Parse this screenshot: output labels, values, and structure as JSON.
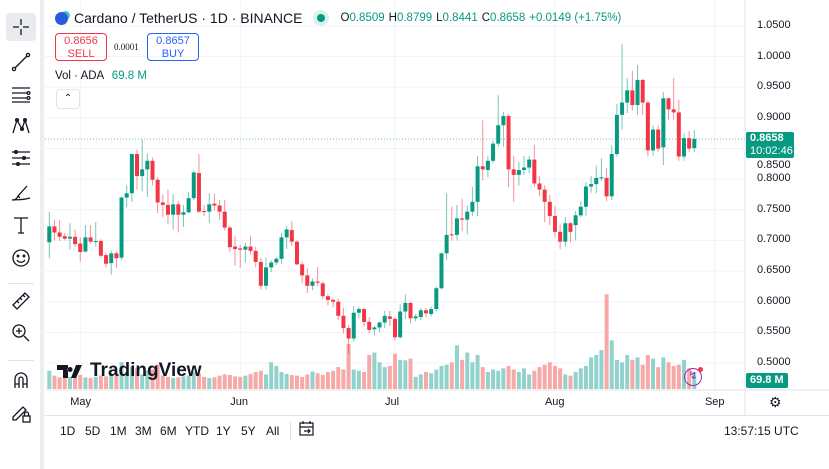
{
  "legend": {
    "title": "Cardano / TetherUS · 1D · BINANCE",
    "open_label": "O",
    "open": "0.8509",
    "high_label": "H",
    "high": "0.8799",
    "low_label": "L",
    "low": "0.8441",
    "close_label": "C",
    "close": "0.8658",
    "change": "+0.0149 (+1.75%)",
    "market_status": "open"
  },
  "trade": {
    "sell_price": "0.8656",
    "sell_label": "SELL",
    "spread": "0.0001",
    "buy_price": "0.8657",
    "buy_label": "BUY"
  },
  "volume": {
    "label": "Vol · ADA",
    "value": "69.8 M"
  },
  "price_tag": {
    "price": "0.8658",
    "countdown": "10:02:46"
  },
  "volume_tag": "69.8 M",
  "watermark": "TradingView",
  "ranges": [
    "1D",
    "5D",
    "1M",
    "3M",
    "6M",
    "YTD",
    "1Y",
    "5Y",
    "All"
  ],
  "clock": "13:57:15 UTC",
  "toolbar": [
    "crosshair-icon",
    "trend-line-icon",
    "fib-retracement-icon",
    "pattern-icon",
    "projection-icon",
    "brush-icon",
    "text-icon",
    "emoji-icon",
    "ruler-icon",
    "zoom-in-icon",
    "magnet-icon",
    "lock-drawing-icon"
  ],
  "colors": {
    "up": "#089981",
    "down": "#f23645",
    "up_volume": "#92d2cc",
    "down_volume": "#f7a9a7",
    "accent": "#2962ff"
  },
  "chart_data": {
    "type": "candlestick",
    "y_ticks": [
      "1.0500",
      "1.0000",
      "0.9500",
      "0.9000",
      "0.8500",
      "0.8000",
      "0.7500",
      "0.7000",
      "0.6500",
      "0.6000",
      "0.5500",
      "0.5000"
    ],
    "ylim": [
      0.5,
      1.05
    ],
    "x_ticks": [
      "May",
      "Jun",
      "Jul",
      "Aug",
      "Sep"
    ],
    "grid": true,
    "candles_ohlc": [
      [
        0.697,
        0.747,
        0.671,
        0.723
      ],
      [
        0.723,
        0.734,
        0.7,
        0.713
      ],
      [
        0.713,
        0.733,
        0.699,
        0.706
      ],
      [
        0.707,
        0.712,
        0.7,
        0.703
      ],
      [
        0.703,
        0.728,
        0.685,
        0.706
      ],
      [
        0.706,
        0.718,
        0.69,
        0.694
      ],
      [
        0.695,
        0.705,
        0.665,
        0.681
      ],
      [
        0.682,
        0.725,
        0.68,
        0.705
      ],
      [
        0.705,
        0.725,
        0.695,
        0.698
      ],
      [
        0.698,
        0.73,
        0.69,
        0.699
      ],
      [
        0.699,
        0.702,
        0.672,
        0.675
      ],
      [
        0.676,
        0.68,
        0.656,
        0.662
      ],
      [
        0.663,
        0.683,
        0.644,
        0.679
      ],
      [
        0.679,
        0.682,
        0.655,
        0.671
      ],
      [
        0.672,
        0.772,
        0.668,
        0.77
      ],
      [
        0.77,
        0.79,
        0.754,
        0.777
      ],
      [
        0.777,
        0.842,
        0.763,
        0.841
      ],
      [
        0.841,
        0.848,
        0.783,
        0.805
      ],
      [
        0.805,
        0.865,
        0.78,
        0.816
      ],
      [
        0.816,
        0.842,
        0.771,
        0.83
      ],
      [
        0.83,
        0.835,
        0.79,
        0.799
      ],
      [
        0.799,
        0.803,
        0.745,
        0.762
      ],
      [
        0.762,
        0.775,
        0.738,
        0.758
      ],
      [
        0.758,
        0.783,
        0.726,
        0.742
      ],
      [
        0.742,
        0.776,
        0.718,
        0.759
      ],
      [
        0.759,
        0.765,
        0.713,
        0.742
      ],
      [
        0.742,
        0.758,
        0.722,
        0.746
      ],
      [
        0.746,
        0.779,
        0.745,
        0.769
      ],
      [
        0.769,
        0.814,
        0.766,
        0.811
      ],
      [
        0.81,
        0.841,
        0.745,
        0.747
      ],
      [
        0.748,
        0.758,
        0.74,
        0.747
      ],
      [
        0.747,
        0.777,
        0.728,
        0.759
      ],
      [
        0.76,
        0.776,
        0.749,
        0.757
      ],
      [
        0.757,
        0.766,
        0.734,
        0.747
      ],
      [
        0.747,
        0.766,
        0.716,
        0.721
      ],
      [
        0.721,
        0.723,
        0.681,
        0.689
      ],
      [
        0.69,
        0.708,
        0.659,
        0.686
      ],
      [
        0.687,
        0.693,
        0.655,
        0.685
      ],
      [
        0.685,
        0.696,
        0.664,
        0.69
      ],
      [
        0.69,
        0.708,
        0.677,
        0.683
      ],
      [
        0.683,
        0.69,
        0.656,
        0.665
      ],
      [
        0.665,
        0.672,
        0.62,
        0.626
      ],
      [
        0.626,
        0.672,
        0.62,
        0.656
      ],
      [
        0.656,
        0.668,
        0.648,
        0.664
      ],
      [
        0.664,
        0.673,
        0.66,
        0.67
      ],
      [
        0.67,
        0.712,
        0.662,
        0.705
      ],
      [
        0.705,
        0.724,
        0.686,
        0.718
      ],
      [
        0.717,
        0.732,
        0.691,
        0.698
      ],
      [
        0.698,
        0.7,
        0.66,
        0.661
      ],
      [
        0.661,
        0.666,
        0.63,
        0.643
      ],
      [
        0.643,
        0.655,
        0.614,
        0.626
      ],
      [
        0.626,
        0.638,
        0.619,
        0.633
      ],
      [
        0.633,
        0.657,
        0.625,
        0.631
      ],
      [
        0.63,
        0.633,
        0.604,
        0.609
      ],
      [
        0.609,
        0.613,
        0.594,
        0.603
      ],
      [
        0.603,
        0.605,
        0.591,
        0.6
      ],
      [
        0.6,
        0.605,
        0.57,
        0.577
      ],
      [
        0.577,
        0.59,
        0.548,
        0.557
      ],
      [
        0.557,
        0.562,
        0.515,
        0.54
      ],
      [
        0.54,
        0.593,
        0.535,
        0.582
      ],
      [
        0.582,
        0.592,
        0.573,
        0.588
      ],
      [
        0.588,
        0.59,
        0.56,
        0.567
      ],
      [
        0.567,
        0.575,
        0.548,
        0.554
      ],
      [
        0.555,
        0.56,
        0.545,
        0.558
      ],
      [
        0.558,
        0.568,
        0.55,
        0.566
      ],
      [
        0.566,
        0.585,
        0.557,
        0.577
      ],
      [
        0.576,
        0.585,
        0.56,
        0.572
      ],
      [
        0.572,
        0.575,
        0.537,
        0.542
      ],
      [
        0.542,
        0.596,
        0.54,
        0.584
      ],
      [
        0.584,
        0.612,
        0.572,
        0.598
      ],
      [
        0.598,
        0.6,
        0.565,
        0.573
      ],
      [
        0.573,
        0.58,
        0.568,
        0.576
      ],
      [
        0.575,
        0.59,
        0.57,
        0.586
      ],
      [
        0.586,
        0.59,
        0.575,
        0.581
      ],
      [
        0.58,
        0.592,
        0.576,
        0.588
      ],
      [
        0.588,
        0.625,
        0.585,
        0.622
      ],
      [
        0.622,
        0.68,
        0.62,
        0.679
      ],
      [
        0.679,
        0.777,
        0.668,
        0.709
      ],
      [
        0.71,
        0.755,
        0.7,
        0.709
      ],
      [
        0.709,
        0.758,
        0.7,
        0.736
      ],
      [
        0.736,
        0.768,
        0.715,
        0.734
      ],
      [
        0.734,
        0.757,
        0.71,
        0.747
      ],
      [
        0.747,
        0.787,
        0.74,
        0.763
      ],
      [
        0.763,
        0.838,
        0.74,
        0.821
      ],
      [
        0.821,
        0.896,
        0.798,
        0.816
      ],
      [
        0.815,
        0.838,
        0.803,
        0.83
      ],
      [
        0.83,
        0.863,
        0.826,
        0.858
      ],
      [
        0.858,
        0.937,
        0.853,
        0.888
      ],
      [
        0.888,
        0.91,
        0.853,
        0.903
      ],
      [
        0.903,
        0.906,
        0.787,
        0.816
      ],
      [
        0.816,
        0.838,
        0.763,
        0.807
      ],
      [
        0.807,
        0.828,
        0.79,
        0.815
      ],
      [
        0.815,
        0.838,
        0.807,
        0.819
      ],
      [
        0.819,
        0.838,
        0.81,
        0.832
      ],
      [
        0.832,
        0.856,
        0.787,
        0.793
      ],
      [
        0.793,
        0.805,
        0.772,
        0.783
      ],
      [
        0.783,
        0.79,
        0.73,
        0.763
      ],
      [
        0.763,
        0.774,
        0.725,
        0.74
      ],
      [
        0.74,
        0.756,
        0.706,
        0.714
      ],
      [
        0.714,
        0.726,
        0.686,
        0.698
      ],
      [
        0.698,
        0.738,
        0.69,
        0.728
      ],
      [
        0.728,
        0.73,
        0.697,
        0.714
      ],
      [
        0.725,
        0.748,
        0.7,
        0.741
      ],
      [
        0.741,
        0.764,
        0.738,
        0.755
      ],
      [
        0.755,
        0.795,
        0.74,
        0.788
      ],
      [
        0.788,
        0.805,
        0.778,
        0.792
      ],
      [
        0.792,
        0.822,
        0.777,
        0.802
      ],
      [
        0.803,
        0.834,
        0.797,
        0.803
      ],
      [
        0.802,
        0.818,
        0.764,
        0.772
      ],
      [
        0.772,
        0.855,
        0.766,
        0.841
      ],
      [
        0.841,
        0.923,
        0.837,
        0.905
      ],
      [
        0.905,
        1.02,
        0.881,
        0.925
      ],
      [
        0.925,
        0.965,
        0.908,
        0.945
      ],
      [
        0.945,
        0.977,
        0.912,
        0.921
      ],
      [
        0.921,
        0.987,
        0.905,
        0.962
      ],
      [
        0.962,
        0.964,
        0.905,
        0.925
      ],
      [
        0.925,
        0.928,
        0.837,
        0.847
      ],
      [
        0.847,
        0.888,
        0.838,
        0.881
      ],
      [
        0.881,
        0.888,
        0.845,
        0.85
      ],
      [
        0.852,
        0.942,
        0.823,
        0.932
      ],
      [
        0.932,
        0.933,
        0.897,
        0.914
      ],
      [
        0.914,
        0.965,
        0.897,
        0.909
      ],
      [
        0.909,
        0.93,
        0.83,
        0.837
      ],
      [
        0.837,
        0.875,
        0.83,
        0.867
      ],
      [
        0.867,
        0.879,
        0.845,
        0.85
      ],
      [
        0.8509,
        0.8799,
        0.8441,
        0.8658
      ]
    ],
    "volumes_millions": [
      75,
      55,
      48,
      45,
      50,
      52,
      58,
      48,
      45,
      50,
      55,
      52,
      60,
      55,
      110,
      70,
      90,
      85,
      60,
      75,
      80,
      100,
      55,
      50,
      45,
      48,
      52,
      55,
      70,
      65,
      50,
      45,
      48,
      55,
      60,
      58,
      52,
      50,
      55,
      62,
      70,
      75,
      60,
      110,
      95,
      70,
      62,
      58,
      55,
      50,
      60,
      72,
      65,
      58,
      70,
      75,
      90,
      80,
      185,
      80,
      75,
      70,
      140,
      150,
      110,
      90,
      95,
      145,
      120,
      118,
      125,
      50,
      60,
      70,
      65,
      80,
      95,
      100,
      110,
      180,
      120,
      150,
      110,
      140,
      90,
      70,
      80,
      75,
      85,
      95,
      80,
      70,
      85,
      60,
      75,
      90,
      100,
      110,
      95,
      85,
      60,
      55,
      70,
      85,
      95,
      130,
      140,
      160,
      390,
      200,
      120,
      110,
      140,
      120,
      130,
      100,
      140,
      125,
      90,
      130,
      110,
      95,
      100,
      120,
      85,
      69.8
    ]
  }
}
